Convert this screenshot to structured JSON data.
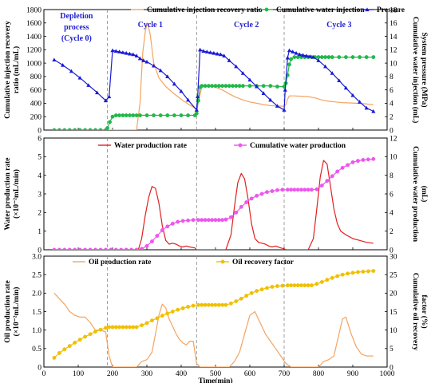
{
  "chart_data": [
    {
      "type": "line",
      "xlim": [
        0,
        1000
      ],
      "xticks": [
        0,
        100,
        200,
        300,
        400,
        500,
        600,
        700,
        800,
        900,
        1000
      ],
      "ylim_left": [
        0,
        1800
      ],
      "yticks_left": [
        0,
        200,
        400,
        600,
        800,
        1000,
        1200,
        1400,
        1600,
        1800
      ],
      "ylim_right": [
        0,
        18
      ],
      "yticks_right": [
        0,
        2,
        4,
        6,
        8,
        10,
        12,
        14,
        16,
        18
      ],
      "ylabel_left": [
        "Cumulative injection recovery",
        "ratio (mL/mL)"
      ],
      "ylabel_right": [
        "Cumulative water injection (mL)",
        "System pressure (MPa)"
      ],
      "legend": [
        "Cumulative injection recovery ratio",
        "Cumulative water injection",
        "Pressure"
      ],
      "annotations": [
        {
          "lines": [
            "Depletion",
            "process",
            "(Cycle 0)"
          ],
          "x": 95
        },
        {
          "lines": [
            "Cycle 1"
          ],
          "x": 310
        },
        {
          "lines": [
            "Cycle 2"
          ],
          "x": 590
        },
        {
          "lines": [
            "Cycle 3"
          ],
          "x": 860
        }
      ],
      "grid": false,
      "series": [
        {
          "name": "Cumulative injection recovery ratio",
          "axis": "left",
          "color": "#f4a460",
          "marker": "none",
          "x": [
            185,
            270,
            280,
            288,
            296,
            302,
            310,
            320,
            335,
            355,
            375,
            400,
            420,
            440,
            445,
            450,
            460,
            470,
            480,
            490,
            500,
            520,
            540,
            560,
            580,
            600,
            620,
            640,
            660,
            680,
            700,
            705,
            710,
            715,
            720,
            730,
            750,
            770,
            790,
            810,
            830,
            850,
            870,
            890,
            910,
            930,
            950,
            960
          ],
          "y": [
            0,
            0,
            400,
            1150,
            1500,
            1600,
            1420,
            1000,
            780,
            650,
            560,
            460,
            390,
            330,
            320,
            420,
            640,
            650,
            655,
            650,
            640,
            600,
            540,
            490,
            450,
            420,
            400,
            380,
            365,
            360,
            355,
            380,
            460,
            510,
            510,
            510,
            505,
            500,
            480,
            450,
            430,
            420,
            410,
            405,
            400,
            395,
            385,
            380
          ]
        },
        {
          "name": "Cumulative water injection",
          "axis": "right",
          "color": "#22b84a",
          "marker": "circle",
          "x": [
            30,
            45,
            60,
            75,
            90,
            105,
            120,
            135,
            150,
            165,
            180,
            185,
            192,
            200,
            210,
            220,
            230,
            240,
            250,
            260,
            270,
            280,
            300,
            320,
            340,
            360,
            380,
            400,
            420,
            440,
            445,
            450,
            455,
            460,
            470,
            480,
            490,
            500,
            510,
            520,
            530,
            540,
            550,
            560,
            570,
            580,
            600,
            620,
            640,
            660,
            680,
            700,
            705,
            710,
            715,
            720,
            730,
            740,
            750,
            760,
            770,
            780,
            790,
            800,
            810,
            820,
            830,
            840,
            860,
            880,
            900,
            920,
            940,
            960
          ],
          "y": [
            0,
            0,
            0,
            0,
            0,
            0,
            0,
            0,
            0,
            0,
            0,
            0.3,
            1.2,
            2.0,
            2.2,
            2.2,
            2.2,
            2.2,
            2.2,
            2.2,
            2.2,
            2.2,
            2.2,
            2.2,
            2.2,
            2.2,
            2.2,
            2.2,
            2.2,
            2.2,
            2.5,
            4.4,
            6.4,
            6.6,
            6.6,
            6.6,
            6.6,
            6.6,
            6.6,
            6.6,
            6.6,
            6.6,
            6.6,
            6.6,
            6.6,
            6.6,
            6.6,
            6.6,
            6.6,
            6.6,
            6.5,
            6.5,
            7.0,
            8.2,
            9.8,
            10.6,
            10.9,
            10.9,
            10.9,
            10.9,
            10.9,
            10.9,
            10.9,
            10.9,
            10.9,
            10.9,
            10.9,
            10.9,
            10.9,
            10.9,
            10.9,
            10.9,
            10.9,
            10.9
          ]
        },
        {
          "name": "Pressure",
          "axis": "right",
          "color": "#1a1ad6",
          "marker": "triangle",
          "x": [
            30,
            55,
            80,
            105,
            130,
            155,
            180,
            190,
            200,
            210,
            220,
            230,
            240,
            250,
            260,
            270,
            280,
            290,
            300,
            320,
            340,
            360,
            380,
            400,
            420,
            445,
            448,
            455,
            465,
            475,
            485,
            495,
            505,
            515,
            525,
            540,
            560,
            580,
            600,
            620,
            640,
            660,
            680,
            700,
            703,
            710,
            715,
            725,
            735,
            745,
            755,
            765,
            775,
            785,
            800,
            820,
            840,
            860,
            880,
            900,
            920,
            940,
            960
          ],
          "y": [
            10.5,
            9.7,
            8.8,
            7.8,
            6.7,
            5.6,
            4.4,
            5.0,
            11.9,
            11.8,
            11.7,
            11.6,
            11.5,
            11.4,
            11.3,
            11.1,
            10.7,
            10.4,
            10.2,
            9.6,
            8.9,
            8.0,
            6.9,
            5.8,
            4.5,
            3.0,
            5.0,
            12.0,
            11.8,
            11.7,
            11.6,
            11.5,
            11.4,
            11.3,
            11.1,
            10.4,
            9.5,
            8.5,
            7.5,
            6.5,
            5.5,
            4.5,
            3.6,
            3.0,
            6.0,
            10.8,
            11.9,
            11.7,
            11.5,
            11.3,
            11.2,
            11.1,
            11.0,
            10.9,
            10.4,
            9.5,
            8.5,
            7.4,
            6.3,
            5.2,
            4.2,
            3.3,
            2.8
          ]
        }
      ]
    },
    {
      "type": "line",
      "xlim": [
        0,
        1000
      ],
      "xticks": [
        0,
        100,
        200,
        300,
        400,
        500,
        600,
        700,
        800,
        900,
        1000
      ],
      "ylim_left": [
        0,
        6
      ],
      "yticks_left": [
        0,
        1,
        2,
        3,
        4,
        5,
        6
      ],
      "ylim_right": [
        0,
        12
      ],
      "yticks_right": [
        0,
        2,
        4,
        6,
        8,
        10,
        12
      ],
      "ylabel_left": [
        "Water production rate",
        "(×10⁻²mL/min)"
      ],
      "ylabel_right": [
        "Cumulative water production",
        "(mL)"
      ],
      "legend": [
        "Water production rate",
        "Cumulative water production"
      ],
      "grid": false,
      "series": [
        {
          "name": "Water production rate",
          "axis": "left",
          "color": "#e02020",
          "marker": "none",
          "x": [
            30,
            200,
            275,
            285,
            295,
            305,
            315,
            325,
            335,
            345,
            355,
            365,
            375,
            385,
            395,
            405,
            415,
            425,
            440,
            445,
            450,
            470,
            530,
            545,
            555,
            565,
            575,
            585,
            595,
            605,
            615,
            625,
            635,
            645,
            655,
            665,
            675,
            690,
            700,
            705,
            720,
            770,
            785,
            795,
            805,
            815,
            825,
            835,
            845,
            855,
            865,
            880,
            900,
            920,
            940,
            960
          ],
          "y": [
            0,
            0,
            0,
            0.6,
            1.8,
            2.8,
            3.4,
            3.3,
            2.5,
            1.3,
            0.5,
            0.3,
            0.35,
            0.3,
            0.2,
            0.15,
            0.2,
            0.15,
            0.1,
            0,
            0,
            0,
            0,
            0.8,
            2.3,
            3.6,
            4.1,
            3.8,
            2.7,
            1.4,
            0.6,
            0.4,
            0.35,
            0.3,
            0.2,
            0.15,
            0.2,
            0.1,
            0.05,
            0,
            0,
            0,
            0.6,
            2.2,
            3.9,
            4.8,
            4.6,
            3.4,
            2.2,
            1.4,
            1.0,
            0.8,
            0.6,
            0.5,
            0.4,
            0.35
          ]
        },
        {
          "name": "Cumulative water production",
          "axis": "right",
          "color": "#ee55ee",
          "marker": "circle",
          "x": [
            30,
            45,
            60,
            75,
            90,
            105,
            120,
            135,
            150,
            165,
            180,
            195,
            210,
            225,
            240,
            255,
            270,
            285,
            300,
            315,
            330,
            345,
            360,
            375,
            390,
            405,
            420,
            435,
            450,
            460,
            470,
            480,
            490,
            500,
            510,
            520,
            530,
            545,
            560,
            575,
            590,
            605,
            620,
            635,
            650,
            665,
            680,
            695,
            710,
            720,
            730,
            740,
            750,
            760,
            770,
            780,
            795,
            810,
            825,
            840,
            855,
            870,
            885,
            900,
            915,
            930,
            945,
            960
          ],
          "y": [
            0,
            0,
            0,
            0,
            0,
            0,
            0,
            0,
            0,
            0,
            0,
            0,
            0,
            0,
            0,
            0,
            0,
            0.1,
            0.4,
            0.9,
            1.5,
            2.1,
            2.5,
            2.8,
            3.0,
            3.1,
            3.15,
            3.2,
            3.2,
            3.2,
            3.2,
            3.2,
            3.2,
            3.2,
            3.2,
            3.2,
            3.25,
            3.5,
            4.0,
            4.6,
            5.1,
            5.5,
            5.8,
            6.0,
            6.2,
            6.3,
            6.4,
            6.45,
            6.45,
            6.45,
            6.45,
            6.45,
            6.45,
            6.45,
            6.45,
            6.45,
            6.5,
            6.9,
            7.4,
            7.9,
            8.4,
            8.8,
            9.1,
            9.4,
            9.55,
            9.65,
            9.7,
            9.75
          ]
        }
      ]
    },
    {
      "type": "line",
      "xlim": [
        0,
        1000
      ],
      "xticks": [
        0,
        100,
        200,
        300,
        400,
        500,
        600,
        700,
        800,
        900,
        1000
      ],
      "ylim_left": [
        0,
        3.0
      ],
      "yticks_left": [
        "0",
        "0.5",
        "1.0",
        "1.5",
        "2.0",
        "2.5",
        "3.0"
      ],
      "ylim_right": [
        0,
        30
      ],
      "yticks_right": [
        0,
        5,
        10,
        15,
        20,
        25,
        30
      ],
      "xlabel": "Time(min)",
      "ylabel_left": [
        "Oil production rate",
        "(×10⁻²mL/min)"
      ],
      "ylabel_right": [
        "Cumulative oil recovery",
        "factor (%)"
      ],
      "legend": [
        "Oil production rate",
        "Oil recovery factor"
      ],
      "grid": false,
      "series": [
        {
          "name": "Oil production rate",
          "axis": "left",
          "color": "#f4a460",
          "marker": "none",
          "x": [
            30,
            45,
            60,
            75,
            90,
            105,
            120,
            135,
            150,
            165,
            180,
            190,
            200,
            270,
            285,
            300,
            315,
            325,
            335,
            345,
            355,
            365,
            375,
            385,
            395,
            405,
            415,
            425,
            435,
            445,
            455,
            540,
            555,
            570,
            585,
            600,
            615,
            630,
            645,
            660,
            675,
            690,
            705,
            720,
            800,
            815,
            830,
            845,
            860,
            870,
            880,
            895,
            910,
            925,
            940,
            960
          ],
          "y": [
            2.0,
            1.85,
            1.7,
            1.5,
            1.4,
            1.35,
            1.35,
            1.2,
            1.0,
            1.0,
            0.95,
            0.3,
            0,
            0,
            0.15,
            0.2,
            0.4,
            0.9,
            1.4,
            1.7,
            1.6,
            1.3,
            1.1,
            0.9,
            0.75,
            0.65,
            0.6,
            0.7,
            0.7,
            0.1,
            0,
            0,
            0.15,
            0.4,
            0.9,
            1.4,
            1.5,
            1.2,
            0.9,
            0.7,
            0.5,
            0.3,
            0.1,
            0,
            0,
            0.15,
            0.2,
            0.3,
            0.9,
            1.3,
            1.35,
            0.9,
            0.55,
            0.35,
            0.3,
            0.3
          ]
        },
        {
          "name": "Oil recovery factor",
          "axis": "right",
          "color": "#f0c000",
          "marker": "circle",
          "x": [
            30,
            45,
            60,
            75,
            90,
            105,
            120,
            135,
            150,
            165,
            180,
            190,
            200,
            210,
            220,
            230,
            240,
            250,
            260,
            270,
            285,
            300,
            315,
            330,
            345,
            360,
            375,
            390,
            405,
            420,
            435,
            450,
            460,
            470,
            480,
            490,
            500,
            510,
            520,
            530,
            545,
            560,
            575,
            590,
            605,
            620,
            635,
            650,
            665,
            680,
            695,
            710,
            720,
            730,
            740,
            750,
            760,
            770,
            780,
            795,
            810,
            825,
            840,
            855,
            870,
            885,
            900,
            915,
            930,
            945,
            960
          ],
          "y": [
            2.5,
            3.8,
            4.8,
            5.7,
            6.6,
            7.4,
            8.2,
            8.9,
            9.6,
            10.1,
            10.6,
            10.8,
            10.8,
            10.8,
            10.8,
            10.8,
            10.8,
            10.8,
            10.8,
            10.8,
            11.3,
            11.9,
            12.6,
            13.2,
            13.9,
            14.5,
            15.0,
            15.5,
            15.9,
            16.3,
            16.6,
            16.8,
            16.8,
            16.8,
            16.8,
            16.8,
            16.8,
            16.8,
            16.8,
            16.8,
            17.2,
            17.8,
            18.5,
            19.3,
            20.0,
            20.6,
            21.0,
            21.4,
            21.7,
            21.9,
            22.0,
            22.1,
            22.1,
            22.1,
            22.1,
            22.1,
            22.1,
            22.1,
            22.1,
            22.5,
            23.0,
            23.6,
            24.1,
            24.6,
            25.0,
            25.3,
            25.5,
            25.7,
            25.8,
            25.9,
            26.0
          ]
        }
      ]
    }
  ]
}
